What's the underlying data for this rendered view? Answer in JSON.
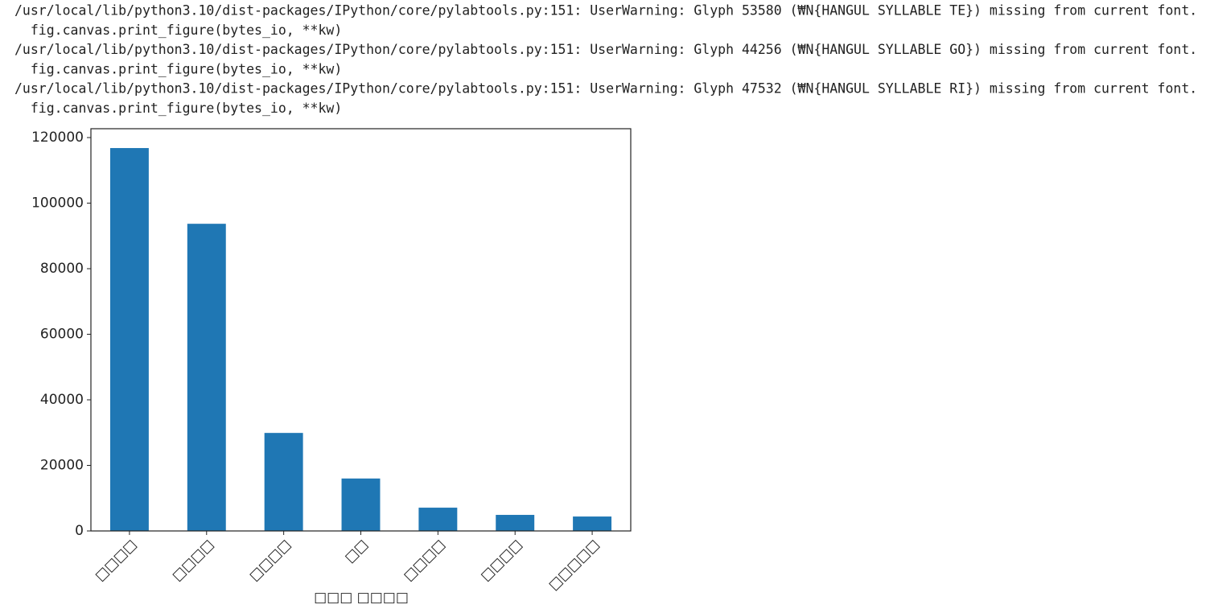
{
  "output": {
    "warnings": [
      "/usr/local/lib/python3.10/dist-packages/IPython/core/pylabtools.py:151: UserWarning: Glyph 53580 (₩N{HANGUL SYLLABLE TE}) missing from current font.",
      "  fig.canvas.print_figure(bytes_io, **kw)",
      "/usr/local/lib/python3.10/dist-packages/IPython/core/pylabtools.py:151: UserWarning: Glyph 44256 (₩N{HANGUL SYLLABLE GO}) missing from current font.",
      "  fig.canvas.print_figure(bytes_io, **kw)",
      "/usr/local/lib/python3.10/dist-packages/IPython/core/pylabtools.py:151: UserWarning: Glyph 47532 (₩N{HANGUL SYLLABLE RI}) missing from current font.",
      "  fig.canvas.print_figure(bytes_io, **kw)"
    ]
  },
  "chart_data": {
    "type": "bar",
    "x_label": "□□□ □□□□",
    "categories": [
      "□□□□",
      "□□□□",
      "□□□□",
      "□□",
      "□□□□",
      "□□□□",
      "□□□□□"
    ],
    "values": [
      116800,
      93700,
      29900,
      16000,
      7100,
      4900,
      4400
    ],
    "color": "#1f77b4",
    "ylim": [
      0,
      122700
    ],
    "yticks": [
      0,
      20000,
      40000,
      60000,
      80000,
      100000,
      120000
    ],
    "grid": false
  }
}
